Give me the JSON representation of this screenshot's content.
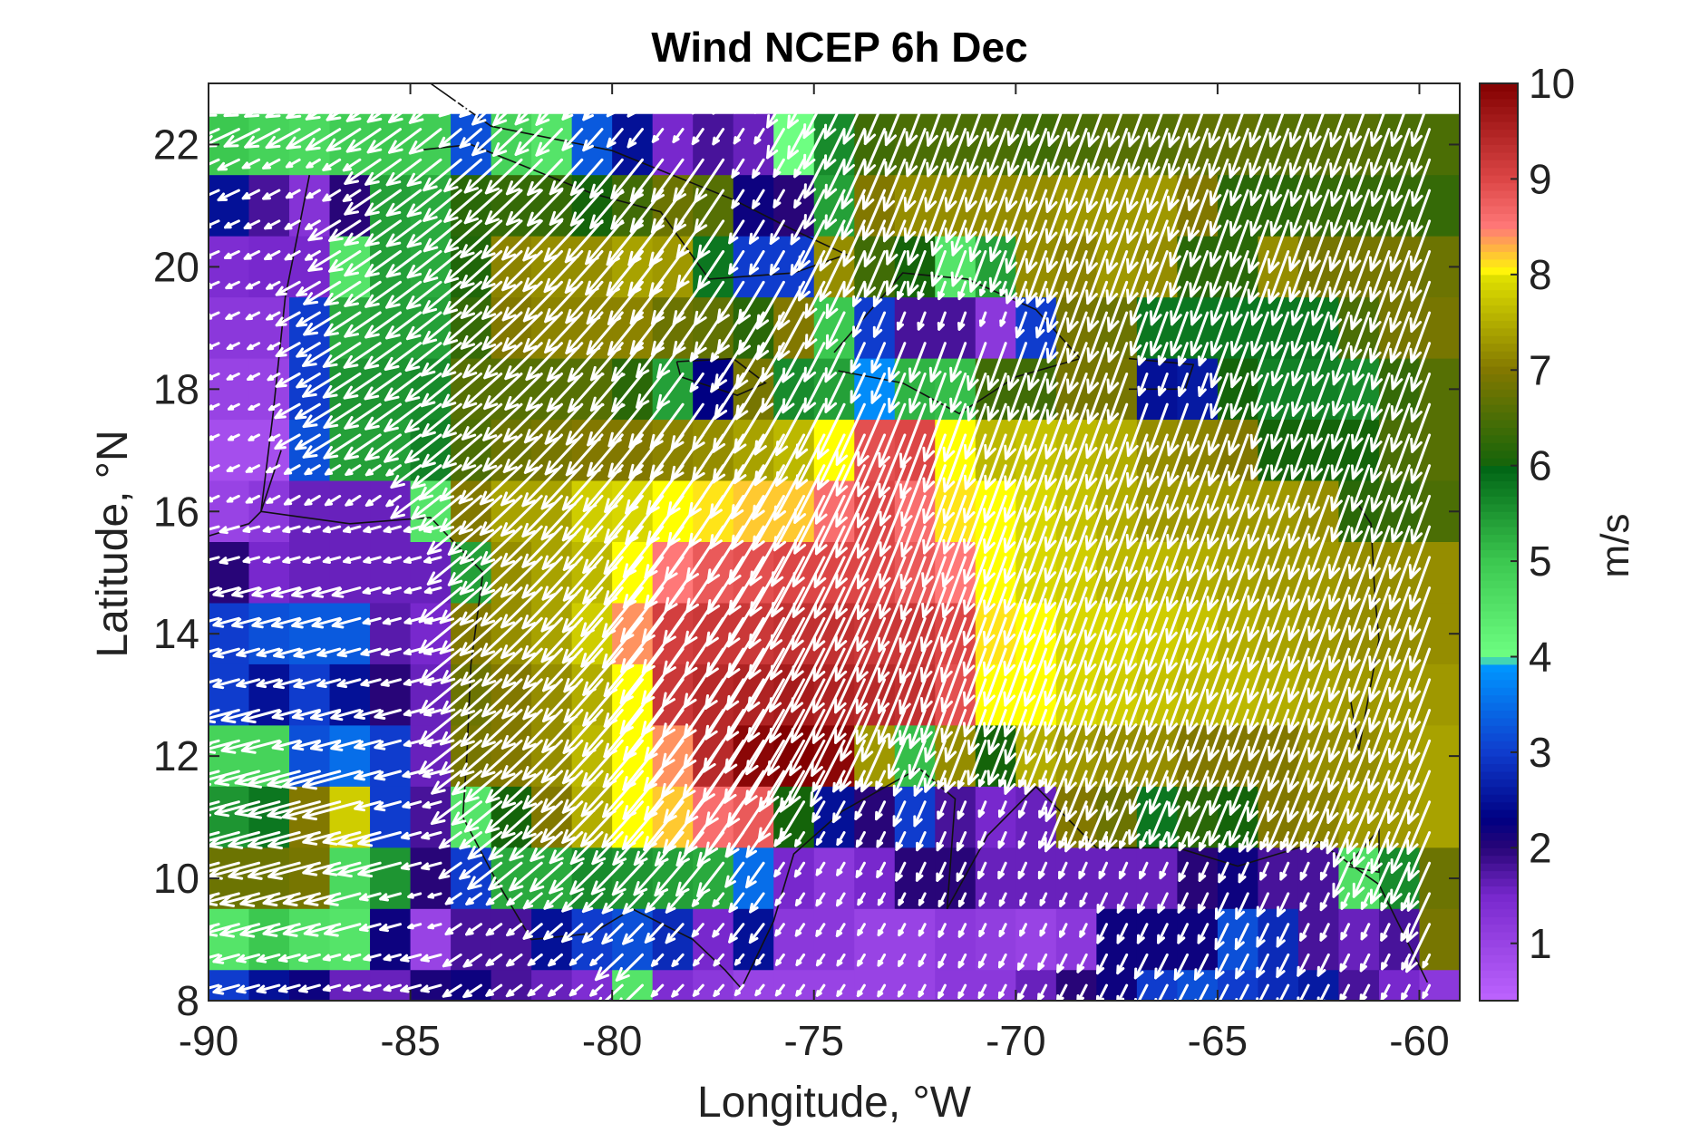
{
  "chart_data": {
    "type": "heatmap",
    "title": "Wind NCEP 6h Dec",
    "xlabel": "Longitude, °W",
    "ylabel": "Latitude, °N",
    "colorbar_label": "m/s",
    "xlim": [
      -90,
      -59
    ],
    "ylim": [
      8,
      23
    ],
    "xticks": [
      -90,
      -85,
      -80,
      -75,
      -70,
      -65,
      -60
    ],
    "yticks": [
      8,
      10,
      12,
      14,
      16,
      18,
      20,
      22
    ],
    "colorbar_ticks": [
      1,
      2,
      3,
      4,
      5,
      6,
      7,
      8,
      9,
      10
    ],
    "colorbar_range": [
      0.4,
      10
    ],
    "grid_spacing_deg": 1,
    "grid_lon_start": -90,
    "grid_lat_top": 22.5,
    "rows": 15,
    "cols": 31,
    "wind_speed": [
      [
        5.0,
        4.8,
        4.7,
        4.9,
        5.0,
        4.9,
        3.2,
        4.8,
        4.5,
        3.3,
        2.5,
        1.5,
        1.8,
        1.6,
        4.0,
        5.6,
        6.4,
        6.5,
        6.5,
        6.5,
        6.4,
        6.5,
        6.6,
        6.6,
        6.7,
        6.7,
        6.6,
        6.6,
        6.6,
        6.5,
        6.5
      ],
      [
        2.5,
        1.8,
        1.3,
        2.0,
        5.4,
        5.3,
        6.2,
        6.3,
        6.3,
        6.0,
        6.4,
        6.8,
        6.6,
        2.2,
        2.0,
        5.4,
        7.0,
        7.2,
        7.2,
        7.2,
        7.2,
        7.3,
        7.3,
        7.3,
        7.0,
        6.2,
        6.2,
        6.3,
        6.3,
        6.3,
        6.3
      ],
      [
        1.4,
        1.5,
        1.5,
        4.5,
        5.4,
        5.3,
        6.1,
        7.1,
        7.2,
        7.2,
        7.4,
        7.3,
        5.8,
        3.0,
        3.0,
        7.2,
        6.4,
        6.0,
        4.5,
        5.4,
        7.2,
        7.1,
        7.3,
        7.2,
        6.2,
        6.2,
        7.2,
        6.9,
        6.9,
        6.9,
        6.8
      ],
      [
        1.2,
        1.2,
        3.0,
        5.3,
        5.4,
        5.4,
        6.3,
        7.0,
        7.1,
        7.1,
        7.1,
        6.8,
        6.7,
        6.2,
        7.0,
        5.0,
        3.0,
        1.8,
        1.8,
        1.2,
        3.0,
        6.9,
        6.8,
        5.8,
        5.8,
        5.8,
        5.8,
        5.8,
        6.5,
        6.9,
        6.9
      ],
      [
        1.0,
        1.0,
        3.0,
        5.5,
        5.5,
        5.6,
        6.6,
        6.6,
        6.6,
        6.6,
        6.2,
        5.4,
        2.3,
        6.9,
        5.6,
        5.4,
        3.8,
        5.2,
        5.1,
        6.4,
        6.4,
        6.9,
        6.9,
        2.5,
        2.6,
        6.0,
        5.7,
        5.7,
        5.6,
        6.3,
        6.6
      ],
      [
        0.8,
        0.8,
        3.2,
        5.4,
        5.4,
        5.7,
        6.5,
        6.8,
        6.9,
        7.0,
        7.0,
        7.1,
        7.2,
        7.4,
        7.6,
        8.0,
        8.9,
        9.0,
        8.0,
        7.6,
        7.7,
        7.6,
        7.5,
        7.2,
        7.1,
        7.0,
        6.0,
        6.0,
        6.0,
        6.5,
        6.6
      ],
      [
        1.0,
        1.2,
        1.6,
        1.6,
        1.6,
        4.5,
        7.0,
        7.4,
        7.4,
        7.8,
        7.9,
        8.0,
        8.1,
        8.2,
        8.2,
        8.6,
        9.0,
        8.6,
        8.1,
        8.0,
        7.9,
        7.7,
        7.5,
        7.3,
        7.3,
        7.3,
        7.3,
        7.2,
        6.2,
        6.3,
        6.5
      ],
      [
        2.0,
        1.5,
        1.6,
        1.6,
        1.6,
        1.6,
        5.4,
        7.2,
        7.4,
        7.6,
        8.0,
        8.5,
        8.8,
        8.9,
        9.0,
        9.0,
        9.0,
        8.8,
        8.5,
        8.0,
        7.9,
        7.8,
        7.6,
        7.6,
        7.5,
        7.4,
        7.3,
        7.3,
        7.2,
        7.2,
        7.2
      ],
      [
        3.0,
        3.2,
        3.3,
        3.3,
        1.7,
        1.5,
        7.0,
        7.2,
        7.4,
        7.8,
        8.4,
        9.1,
        9.2,
        9.2,
        9.3,
        9.3,
        9.2,
        9.2,
        9.0,
        8.1,
        8.0,
        7.9,
        7.9,
        7.8,
        7.7,
        7.5,
        7.4,
        7.3,
        7.2,
        7.2,
        7.2
      ],
      [
        3.0,
        2.5,
        3.0,
        2.5,
        2.0,
        1.6,
        6.8,
        7.0,
        7.2,
        7.5,
        8.0,
        9.2,
        9.4,
        9.5,
        9.6,
        9.5,
        9.4,
        9.3,
        8.9,
        8.0,
        8.0,
        7.9,
        7.8,
        7.7,
        7.6,
        7.6,
        7.5,
        7.4,
        7.3,
        7.3,
        7.3
      ],
      [
        4.8,
        4.8,
        3.2,
        3.5,
        3.0,
        1.6,
        6.9,
        7.0,
        7.2,
        7.6,
        8.0,
        8.4,
        9.4,
        9.9,
        10.0,
        9.9,
        7.3,
        5.1,
        7.2,
        6.0,
        7.5,
        7.3,
        7.2,
        7.2,
        7.0,
        7.0,
        7.0,
        7.2,
        7.2,
        7.3,
        7.4
      ],
      [
        5.5,
        5.8,
        7.0,
        7.8,
        3.0,
        1.8,
        4.5,
        6.0,
        7.0,
        7.5,
        8.0,
        8.2,
        8.6,
        8.8,
        6.0,
        2.5,
        2.0,
        3.0,
        1.8,
        1.5,
        1.6,
        7.0,
        6.8,
        5.8,
        6.2,
        6.0,
        7.0,
        7.1,
        7.3,
        7.3,
        7.4
      ],
      [
        6.8,
        6.8,
        6.9,
        4.7,
        5.5,
        2.0,
        3.0,
        5.3,
        5.3,
        5.6,
        5.5,
        5.4,
        5.3,
        3.5,
        1.5,
        1.2,
        1.5,
        2.0,
        2.0,
        1.6,
        1.6,
        1.6,
        1.6,
        1.6,
        2.0,
        2.2,
        1.8,
        1.8,
        4.6,
        5.6,
        6.8
      ],
      [
        4.5,
        5.0,
        4.6,
        4.5,
        2.2,
        1.0,
        1.8,
        1.8,
        2.5,
        3.0,
        3.2,
        2.8,
        1.5,
        2.5,
        1.2,
        1.2,
        1.0,
        1.0,
        1.2,
        1.1,
        1.0,
        1.2,
        2.2,
        2.2,
        2.2,
        3.2,
        2.8,
        1.8,
        1.6,
        1.8,
        6.9
      ],
      [
        3.0,
        2.5,
        2.2,
        1.6,
        1.6,
        2.1,
        2.2,
        1.8,
        1.6,
        1.4,
        4.5,
        1.4,
        1.2,
        1.0,
        1.0,
        1.0,
        1.0,
        1.0,
        1.2,
        1.2,
        1.6,
        2.0,
        2.2,
        3.0,
        3.2,
        3.0,
        2.8,
        2.6,
        1.8,
        1.5,
        1.2
      ]
    ],
    "wind_direction_note": "northeasterly trade winds"
  }
}
